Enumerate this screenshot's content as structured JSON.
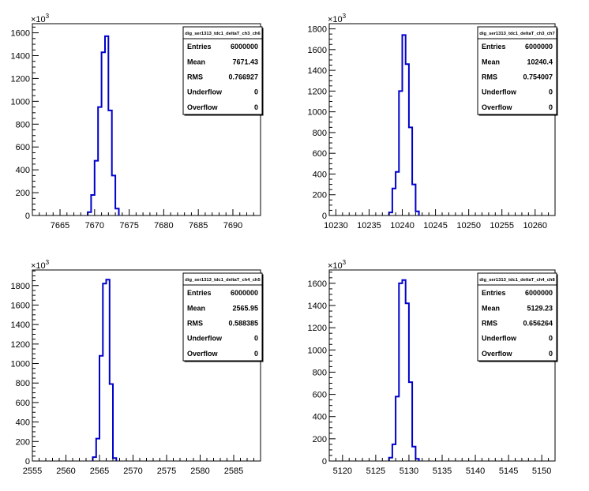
{
  "canvas": {
    "background": "#ffffff",
    "line_color": "#0000cc",
    "axis_color": "#000000"
  },
  "chart_data": [
    {
      "type": "histogram",
      "title": "dig_ser1313_tdc1_deltaT_ch3_ch6",
      "multiplier": "×10",
      "multiplier_exp": "3",
      "xlim": [
        7661,
        7694
      ],
      "ylim": [
        0,
        1680
      ],
      "x_ticks": [
        7665,
        7670,
        7675,
        7680,
        7685,
        7690
      ],
      "y_ticks": [
        0,
        200,
        400,
        600,
        800,
        1000,
        1200,
        1400,
        1600
      ],
      "bin_edges": [
        7669.0,
        7669.5,
        7670.0,
        7670.5,
        7671.0,
        7671.5,
        7672.0,
        7672.5,
        7673.0,
        7673.5
      ],
      "values": [
        30,
        180,
        480,
        950,
        1430,
        1570,
        920,
        350,
        60
      ],
      "stats": [
        {
          "label": "Entries",
          "value": "6000000"
        },
        {
          "label": "Mean",
          "value": "7671.43"
        },
        {
          "label": "RMS",
          "value": "0.766927"
        },
        {
          "label": "Underflow",
          "value": "0"
        },
        {
          "label": "Overflow",
          "value": "0"
        }
      ]
    },
    {
      "type": "histogram",
      "title": "dig_ser1313_tdc1_deltaT_ch3_ch7",
      "multiplier": "×10",
      "multiplier_exp": "3",
      "xlim": [
        10229,
        10263
      ],
      "ylim": [
        0,
        1850
      ],
      "x_ticks": [
        10230,
        10235,
        10240,
        10245,
        10250,
        10255,
        10260
      ],
      "y_ticks": [
        0,
        200,
        400,
        600,
        800,
        1000,
        1200,
        1400,
        1600,
        1800
      ],
      "bin_edges": [
        10238.0,
        10238.5,
        10239.0,
        10239.5,
        10240.0,
        10240.5,
        10241.0,
        10241.5,
        10242.0,
        10242.5
      ],
      "values": [
        30,
        260,
        420,
        1200,
        1740,
        1460,
        850,
        300,
        40
      ],
      "stats": [
        {
          "label": "Entries",
          "value": "6000000"
        },
        {
          "label": "Mean",
          "value": "10240.4"
        },
        {
          "label": "RMS",
          "value": "0.754007"
        },
        {
          "label": "Underflow",
          "value": "0"
        },
        {
          "label": "Overflow",
          "value": "0"
        }
      ]
    },
    {
      "type": "histogram",
      "title": "dig_ser1313_tdc1_deltaT_ch4_ch5",
      "multiplier": "×10",
      "multiplier_exp": "3",
      "xlim": [
        2555,
        2589
      ],
      "ylim": [
        0,
        1960
      ],
      "x_ticks": [
        2555,
        2560,
        2565,
        2570,
        2575,
        2580,
        2585
      ],
      "y_ticks": [
        0,
        200,
        400,
        600,
        800,
        1000,
        1200,
        1400,
        1600,
        1800
      ],
      "bin_edges": [
        2564.0,
        2564.5,
        2565.0,
        2565.5,
        2566.0,
        2566.5,
        2567.0,
        2567.5
      ],
      "values": [
        40,
        230,
        1080,
        1820,
        1860,
        790,
        30
      ],
      "stats": [
        {
          "label": "Entries",
          "value": "6000000"
        },
        {
          "label": "Mean",
          "value": "2565.95"
        },
        {
          "label": "RMS",
          "value": "0.588385"
        },
        {
          "label": "Underflow",
          "value": "0"
        },
        {
          "label": "Overflow",
          "value": "0"
        }
      ]
    },
    {
      "type": "histogram",
      "title": "dig_ser1313_tdc1_deltaT_ch4_ch8",
      "multiplier": "×10",
      "multiplier_exp": "3",
      "xlim": [
        5118,
        5152
      ],
      "ylim": [
        0,
        1720
      ],
      "x_ticks": [
        5120,
        5125,
        5130,
        5135,
        5140,
        5145,
        5150
      ],
      "y_ticks": [
        0,
        200,
        400,
        600,
        800,
        1000,
        1200,
        1400,
        1600
      ],
      "bin_edges": [
        5127.0,
        5127.5,
        5128.0,
        5128.5,
        5129.0,
        5129.5,
        5130.0,
        5130.5,
        5131.0,
        5131.5
      ],
      "values": [
        30,
        150,
        580,
        1600,
        1630,
        1420,
        710,
        130,
        20
      ],
      "stats": [
        {
          "label": "Entries",
          "value": "6000000"
        },
        {
          "label": "Mean",
          "value": "5129.23"
        },
        {
          "label": "RMS",
          "value": "0.656264"
        },
        {
          "label": "Underflow",
          "value": "0"
        },
        {
          "label": "Overflow",
          "value": "0"
        }
      ]
    }
  ]
}
